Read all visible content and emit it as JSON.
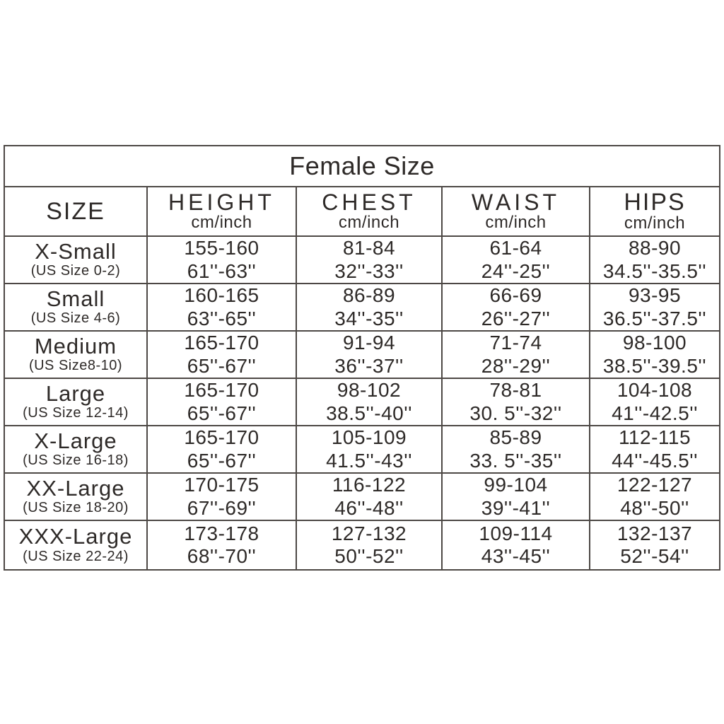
{
  "title": "Female Size",
  "table": {
    "columns": [
      {
        "label": "SIZE",
        "sub": ""
      },
      {
        "label": "HEIGHT",
        "sub": "cm/inch"
      },
      {
        "label": "CHEST",
        "sub": "cm/inch"
      },
      {
        "label": "WAIST",
        "sub": "cm/inch"
      },
      {
        "label": "HIPS",
        "sub": "cm/inch"
      }
    ],
    "rows": [
      {
        "size": "X-Small",
        "us": "(US Size 0-2)",
        "height_cm": "155-160",
        "height_in": "61''-63''",
        "chest_cm": "81-84",
        "chest_in": "32''-33''",
        "waist_cm": "61-64",
        "waist_in": "24''-25''",
        "hips_cm": "88-90",
        "hips_in": "34.5''-35.5''"
      },
      {
        "size": "Small",
        "us": "(US Size 4-6)",
        "height_cm": "160-165",
        "height_in": "63''-65''",
        "chest_cm": "86-89",
        "chest_in": "34''-35''",
        "waist_cm": "66-69",
        "waist_in": "26''-27''",
        "hips_cm": "93-95",
        "hips_in": "36.5''-37.5''"
      },
      {
        "size": "Medium",
        "us": "(US Size8-10)",
        "height_cm": "165-170",
        "height_in": "65''-67''",
        "chest_cm": "91-94",
        "chest_in": "36''-37''",
        "waist_cm": "71-74",
        "waist_in": "28''-29''",
        "hips_cm": "98-100",
        "hips_in": "38.5''-39.5''"
      },
      {
        "size": "Large",
        "us": "(US Size 12-14)",
        "height_cm": "165-170",
        "height_in": "65''-67''",
        "chest_cm": "98-102",
        "chest_in": "38.5''-40''",
        "waist_cm": "78-81",
        "waist_in": "30. 5''-32''",
        "hips_cm": "104-108",
        "hips_in": "41''-42.5''"
      },
      {
        "size": "X-Large",
        "us": "(US Size 16-18)",
        "height_cm": "165-170",
        "height_in": "65''-67''",
        "chest_cm": "105-109",
        "chest_in": "41.5''-43''",
        "waist_cm": "85-89",
        "waist_in": "33. 5''-35''",
        "hips_cm": "112-115",
        "hips_in": "44''-45.5''"
      },
      {
        "size": "XX-Large",
        "us": "(US Size 18-20)",
        "height_cm": "170-175",
        "height_in": "67''-69''",
        "chest_cm": "116-122",
        "chest_in": "46''-48''",
        "waist_cm": "99-104",
        "waist_in": "39''-41''",
        "hips_cm": "122-127",
        "hips_in": "48''-50''"
      },
      {
        "size": "XXX-Large",
        "us": "(US Size 22-24)",
        "height_cm": "173-178",
        "height_in": "68''-70''",
        "chest_cm": "127-132",
        "chest_in": "50''-52''",
        "waist_cm": "109-114",
        "waist_in": "43''-45''",
        "hips_cm": "132-137",
        "hips_in": "52''-54''"
      }
    ]
  }
}
